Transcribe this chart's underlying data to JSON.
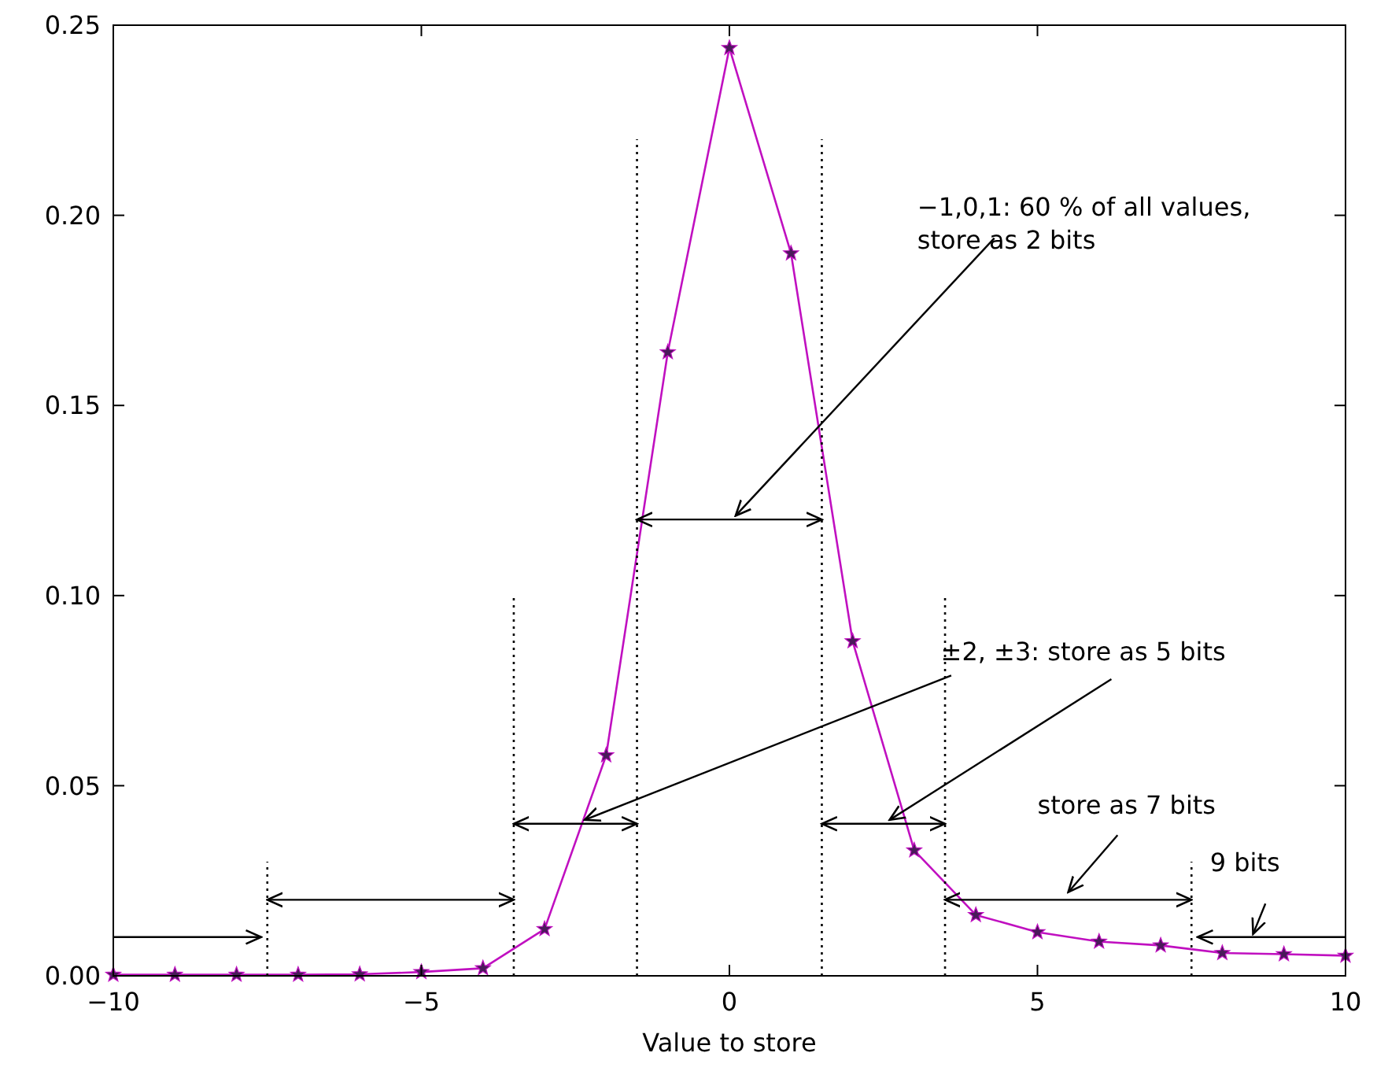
{
  "chart_data": {
    "type": "line",
    "xlabel": "Value to store",
    "xlim": [
      -10,
      10
    ],
    "xticks": [
      -10,
      -5,
      0,
      5,
      10
    ],
    "ylim": [
      0,
      0.25
    ],
    "yticks": [
      {
        "value": 0,
        "label": "0.00"
      },
      {
        "value": 0.05,
        "label": "0.05"
      },
      {
        "value": 0.1,
        "label": "0.10"
      },
      {
        "value": 0.15,
        "label": "0.15"
      },
      {
        "value": 0.2,
        "label": "0.20"
      },
      {
        "value": 0.25,
        "label": "0.25"
      }
    ],
    "grid": false,
    "series": [
      {
        "color": "#c010c0",
        "marker": "star",
        "line_style": "solid",
        "x": [
          -10,
          -9,
          -8,
          -7,
          -6,
          -5,
          -4,
          -3,
          -2,
          -1,
          0,
          1,
          2,
          3,
          4,
          5,
          6,
          7,
          8,
          9,
          10
        ],
        "values": [
          0.0003,
          0.0003,
          0.0003,
          0.0003,
          0.0004,
          0.001,
          0.002,
          0.0123,
          0.058,
          0.164,
          0.244,
          0.19,
          0.088,
          0.033,
          0.016,
          0.0115,
          0.009,
          0.008,
          0.006,
          0.0057,
          0.0053
        ]
      },
      {
        "type": "line",
        "color": "#000000",
        "marker": "none",
        "line_style": "dotted",
        "x": [
          -7.5,
          -7.5
        ],
        "values": [
          0,
          0.03
        ]
      },
      {
        "type": "line",
        "color": "#000000",
        "marker": "none",
        "line_style": "dotted",
        "x": [
          -3.5,
          -3.5
        ],
        "values": [
          0,
          0.1
        ]
      },
      {
        "type": "line",
        "color": "#000000",
        "marker": "none",
        "line_style": "dotted",
        "x": [
          -1.5,
          -1.5
        ],
        "values": [
          0,
          0.22
        ]
      },
      {
        "type": "line",
        "color": "#000000",
        "marker": "none",
        "line_style": "dotted",
        "x": [
          1.5,
          1.5
        ],
        "values": [
          0,
          0.22
        ]
      },
      {
        "type": "line",
        "color": "#000000",
        "marker": "none",
        "line_style": "dotted",
        "x": [
          3.5,
          3.5
        ],
        "values": [
          0,
          0.1
        ]
      },
      {
        "type": "line",
        "color": "#000000",
        "marker": "none",
        "line_style": "dotted",
        "x": [
          7.5,
          7.5
        ],
        "values": [
          0,
          0.03
        ]
      }
    ],
    "annotations": [
      "−1,0,1: 60 % of all values,\nstore as 2 bits",
      {
        "text": "±2, ±3: store as 5 bits",
        "x": -2.35,
        "y": 0.041
      },
      "store as 7 bits",
      "9 bits"
    ]
  }
}
